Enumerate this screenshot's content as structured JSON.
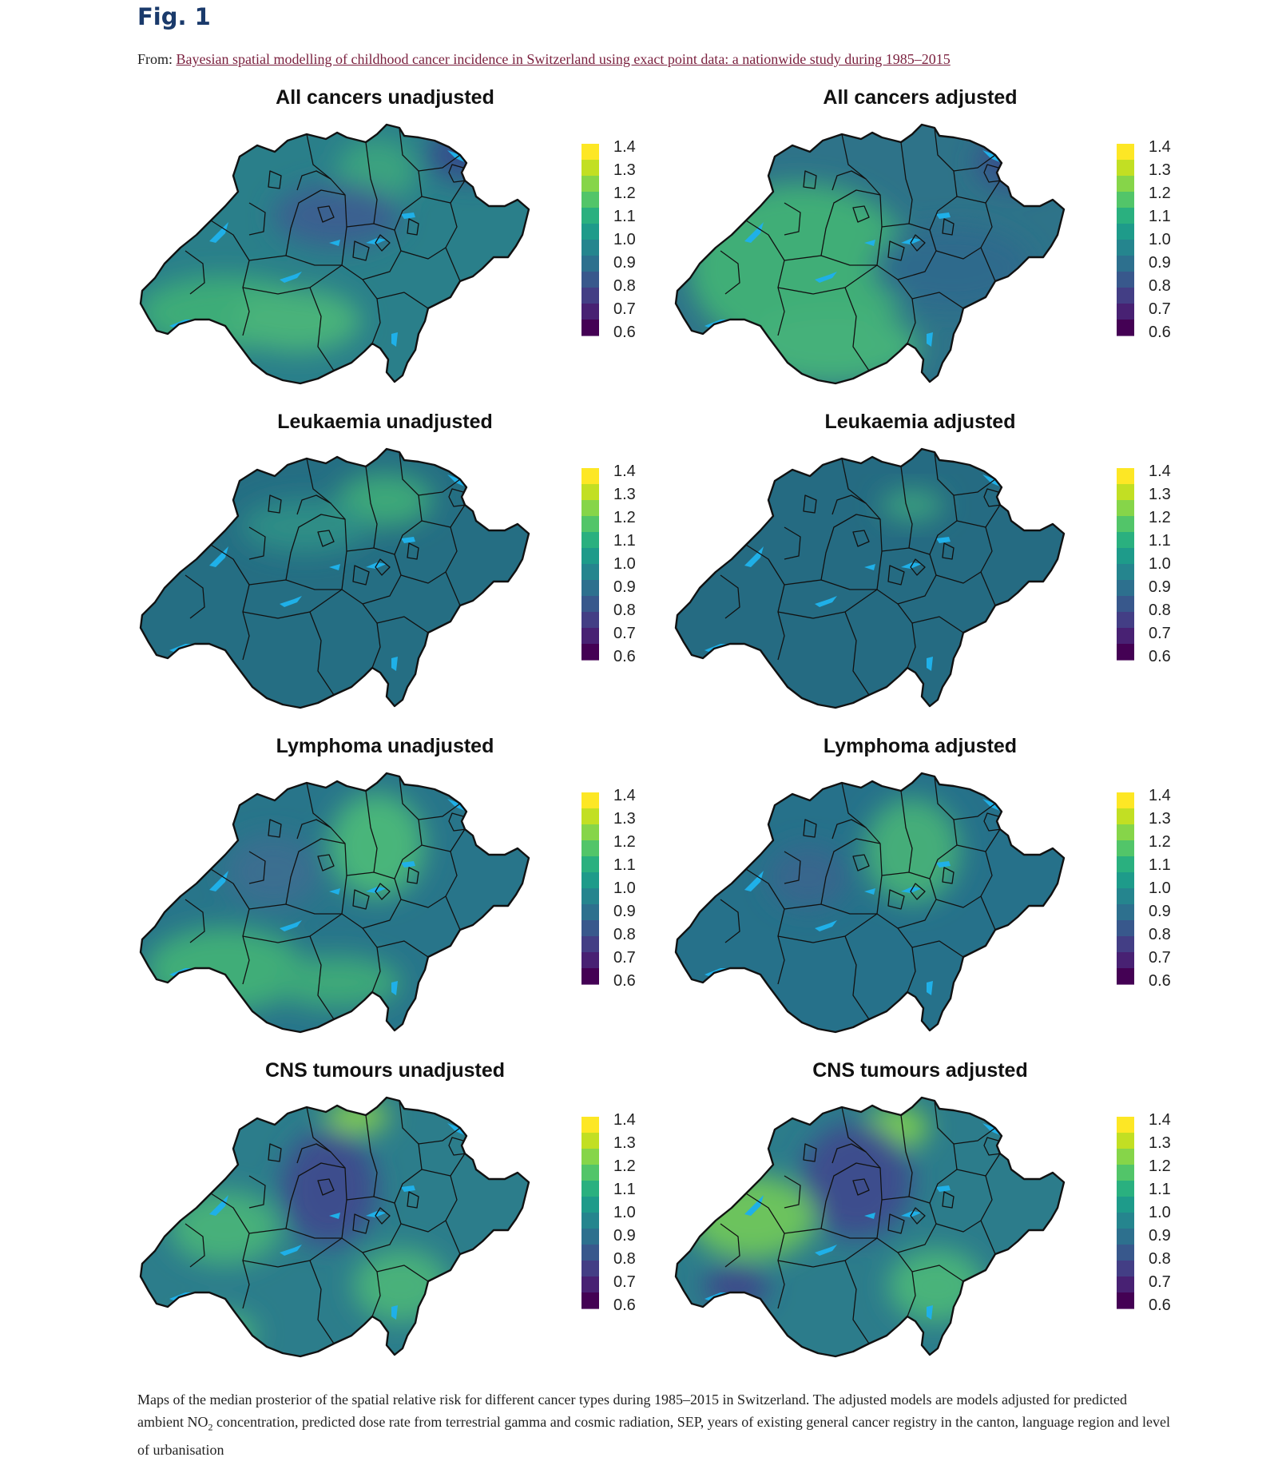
{
  "figure": {
    "label": "Fig. 1",
    "from_prefix": "From: ",
    "article_title": "Bayesian spatial modelling of childhood cancer incidence in Switzerland using exact point data: a nationwide study during 1985–2015"
  },
  "colorbar": {
    "ticks": [
      "1.4",
      "1.3",
      "1.2",
      "1.1",
      "1.0",
      "0.9",
      "0.8",
      "0.7",
      "0.6"
    ],
    "colors": [
      "#fde725",
      "#c2df23",
      "#86d549",
      "#52c569",
      "#2ab07f",
      "#1e9b8a",
      "#25858e",
      "#2d708e",
      "#38588c",
      "#433e85",
      "#482173",
      "#440154"
    ]
  },
  "panels": [
    {
      "title": "All cancers unadjusted",
      "base": "#2a7f8a",
      "blobs": [
        [
          "#3eac78",
          0.22,
          0.72,
          0.22,
          0.14
        ],
        [
          "#48b27a",
          0.4,
          0.75,
          0.16,
          0.12
        ],
        [
          "#3aa37f",
          0.6,
          0.18,
          0.1,
          0.12
        ],
        [
          "#36508b",
          0.84,
          0.12,
          0.12,
          0.1
        ],
        [
          "#3a6090",
          0.5,
          0.35,
          0.16,
          0.12
        ]
      ]
    },
    {
      "title": "All cancers adjusted",
      "base": "#2e7389",
      "blobs": [
        [
          "#3fae77",
          0.32,
          0.55,
          0.28,
          0.32
        ],
        [
          "#45b17a",
          0.4,
          0.85,
          0.22,
          0.14
        ],
        [
          "#38518b",
          0.86,
          0.15,
          0.1,
          0.1
        ],
        [
          "#2f6a8c",
          0.7,
          0.55,
          0.2,
          0.16
        ]
      ]
    },
    {
      "title": "Leukaemia unadjusted",
      "base": "#256e83",
      "blobs": [
        [
          "#3ea879",
          0.62,
          0.2,
          0.12,
          0.1
        ],
        [
          "#2f8e86",
          0.42,
          0.3,
          0.16,
          0.1
        ]
      ]
    },
    {
      "title": "Leukaemia adjusted",
      "base": "#256b82",
      "blobs": [
        [
          "#3a9f7e",
          0.6,
          0.22,
          0.08,
          0.06
        ]
      ]
    },
    {
      "title": "Lymphoma unadjusted",
      "base": "#28758a",
      "blobs": [
        [
          "#49b57a",
          0.6,
          0.28,
          0.12,
          0.2
        ],
        [
          "#40ad78",
          0.22,
          0.75,
          0.2,
          0.16
        ],
        [
          "#3a6e90",
          0.34,
          0.38,
          0.12,
          0.14
        ],
        [
          "#3ea879",
          0.5,
          0.8,
          0.16,
          0.1
        ]
      ]
    },
    {
      "title": "Lymphoma adjusted",
      "base": "#26718a",
      "blobs": [
        [
          "#44ad79",
          0.6,
          0.3,
          0.12,
          0.2
        ],
        [
          "#37668d",
          0.34,
          0.4,
          0.1,
          0.12
        ]
      ]
    },
    {
      "title": "CNS tumours unadjusted",
      "base": "#2c7d8b",
      "blobs": [
        [
          "#85cf50",
          0.55,
          0.08,
          0.08,
          0.06
        ],
        [
          "#3e4e8d",
          0.48,
          0.35,
          0.12,
          0.22
        ],
        [
          "#46b07a",
          0.22,
          0.5,
          0.14,
          0.14
        ],
        [
          "#48b17a",
          0.66,
          0.72,
          0.12,
          0.14
        ],
        [
          "#4ab37a",
          0.2,
          0.9,
          0.1,
          0.08
        ]
      ]
    },
    {
      "title": "CNS tumours adjusted",
      "base": "#2c7c8b",
      "blobs": [
        [
          "#7ccf50",
          0.56,
          0.12,
          0.08,
          0.08
        ],
        [
          "#3e4e8d",
          0.46,
          0.32,
          0.14,
          0.22
        ],
        [
          "#6cc35d",
          0.2,
          0.46,
          0.16,
          0.16
        ],
        [
          "#4ab37a",
          0.66,
          0.72,
          0.12,
          0.14
        ],
        [
          "#3e4a8a",
          0.16,
          0.72,
          0.08,
          0.08
        ]
      ]
    }
  ],
  "caption": {
    "part1": "Maps of the median prosterior of the spatial relative risk for different cancer types during 1985–2015 in Switzerland. The adjusted models are models adjusted for predicted ambient NO",
    "sub": "2",
    "part2": " concentration, predicted dose rate from terrestrial gamma and cosmic radiation, SEP, years of existing general cancer registry in the canton, language region and level of urbanisation"
  }
}
